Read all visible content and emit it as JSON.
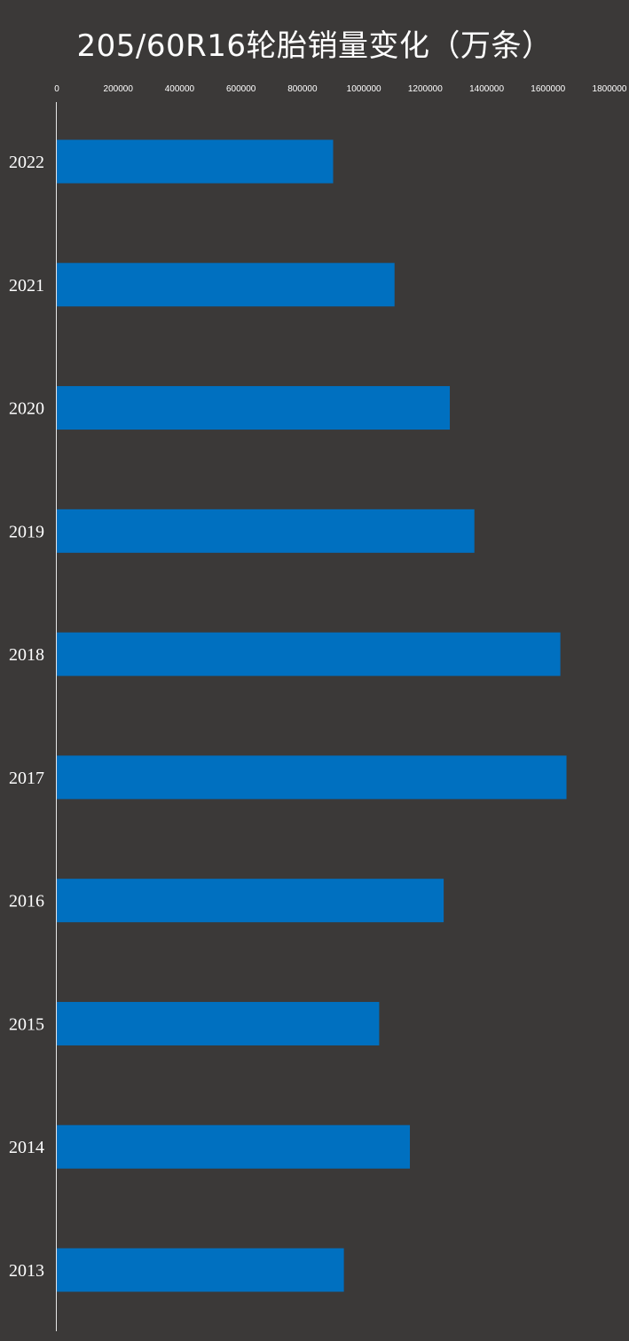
{
  "chart_data": {
    "type": "bar",
    "orientation": "horizontal",
    "title": "205/60R16轮胎销量变化（万条）",
    "xlabel": "",
    "ylabel": "",
    "xlim": [
      0,
      1800000
    ],
    "x_ticks": [
      "0",
      "200000",
      "400000",
      "600000",
      "800000",
      "1000000",
      "1200000",
      "1400000",
      "1600000",
      "1800000"
    ],
    "x_axis_position": "top",
    "grid": false,
    "categories": [
      "2022",
      "2021",
      "2020",
      "2019",
      "2018",
      "2017",
      "2016",
      "2015",
      "2014",
      "2013"
    ],
    "values": [
      900000,
      1100000,
      1280000,
      1360000,
      1640000,
      1660000,
      1260000,
      1050000,
      1150000,
      935000
    ],
    "bar_color": "#0070c0",
    "background_color": "#3b3938",
    "text_color": "#ffffff"
  }
}
